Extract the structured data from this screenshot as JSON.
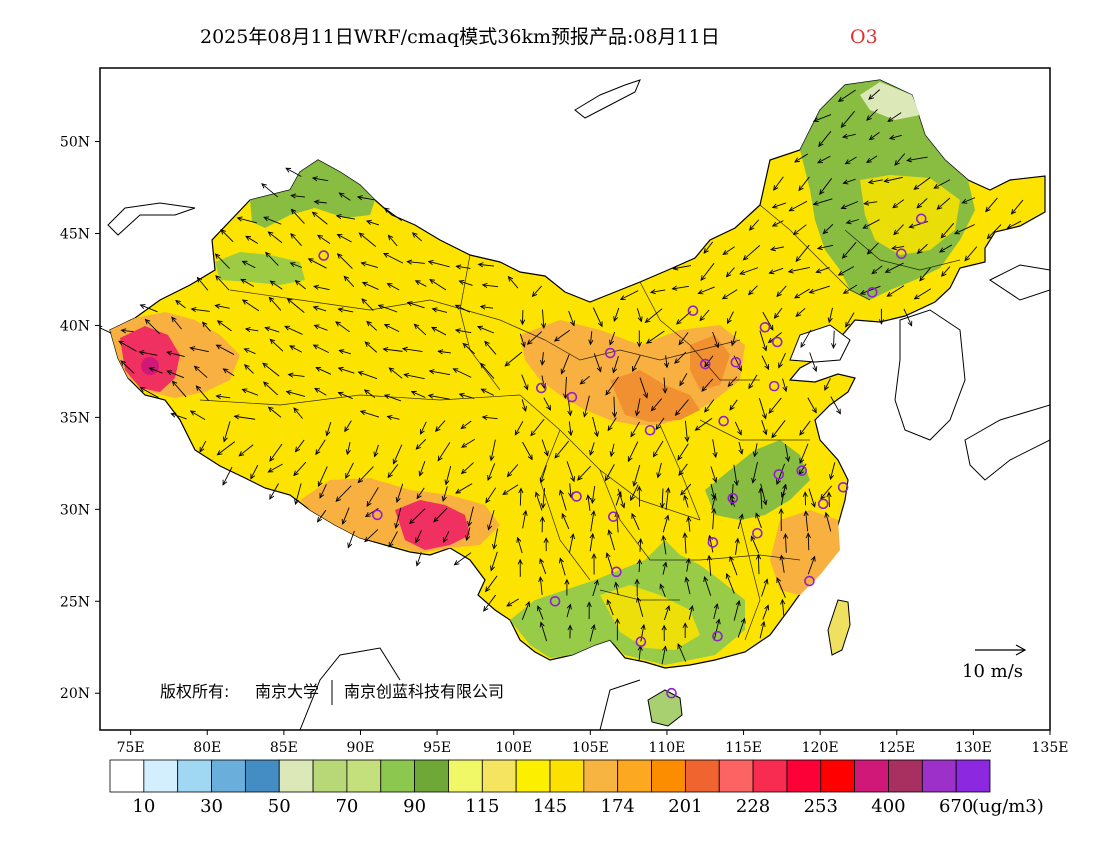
{
  "title": {
    "main": "2025年08月11日WRF/cmaq模式36km预报产品:08月11日",
    "species": "O3",
    "species_color": "#e03030"
  },
  "copyright": {
    "part1": "版权所有:",
    "part2": "南京大学",
    "part3": "南京创蓝科技有限公司"
  },
  "axes": {
    "lon_labels": [
      "75E",
      "80E",
      "85E",
      "90E",
      "95E",
      "100E",
      "105E",
      "110E",
      "115E",
      "120E",
      "125E",
      "130E",
      "135E"
    ],
    "lat_labels": [
      "50N",
      "45N",
      "40N",
      "35N",
      "30N",
      "25N",
      "20N"
    ],
    "lon_values": [
      75,
      80,
      85,
      90,
      95,
      100,
      105,
      110,
      115,
      120,
      125,
      130,
      135
    ],
    "lat_values": [
      50,
      45,
      40,
      35,
      30,
      25,
      20
    ],
    "lon_range": [
      73,
      135
    ],
    "lat_range": [
      18,
      54
    ]
  },
  "wind_scale": {
    "label": "10 m/s"
  },
  "legend": {
    "unit": "(ug/m3)",
    "labels": [
      "10",
      "30",
      "50",
      "70",
      "90",
      "115",
      "145",
      "174",
      "201",
      "228",
      "253",
      "400",
      "670"
    ],
    "colors": [
      "#ffffff",
      "#d3eefc",
      "#a0d8f4",
      "#6aaedc",
      "#438cc4",
      "#dde8b8",
      "#b8d878",
      "#c4e07c",
      "#8cc850",
      "#70a838",
      "#f0f868",
      "#f4e460",
      "#fcf000",
      "#fce000",
      "#f8b440",
      "#fca820",
      "#fc8c00",
      "#f06430",
      "#fc6464",
      "#f82c50",
      "#fc0038",
      "#ff0000",
      "#d01878",
      "#a83060",
      "#9c30c8",
      "#8c28e0"
    ]
  },
  "colors": {
    "background_yellow": "#fce400",
    "green": "#7cb848",
    "light_green": "#a8d070",
    "orange": "#f8b040",
    "dark_orange": "#f09030",
    "red": "#f03060",
    "station_circle": "#9020d0"
  }
}
